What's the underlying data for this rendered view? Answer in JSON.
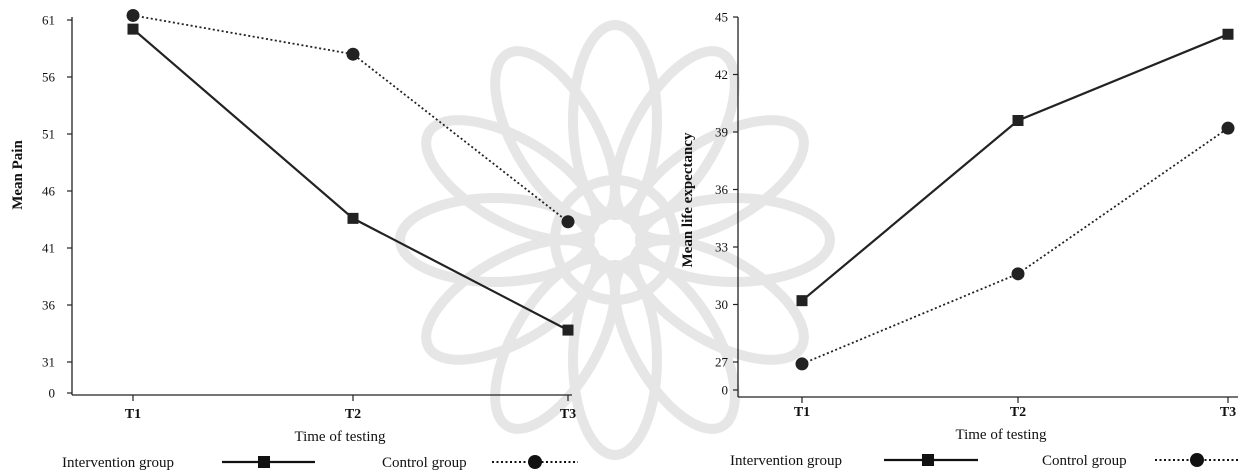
{
  "chart_data": [
    {
      "type": "line",
      "title": "",
      "xlabel": "Time of testing",
      "ylabel": "Mean Pain",
      "categories": [
        "T1",
        "T2",
        "T3"
      ],
      "y_ticks": [
        "0",
        "31",
        "36",
        "41",
        "46",
        "51",
        "56",
        "61"
      ],
      "ylim": [
        31,
        61
      ],
      "axis_break": true,
      "grid": false,
      "legend_position": "bottom",
      "series": [
        {
          "name": "Intervention group",
          "values": [
            60.2,
            43.6,
            33.8
          ],
          "marker": "square",
          "line_style": "solid",
          "color": "#222222"
        },
        {
          "name": "Control group",
          "values": [
            61.4,
            58.0,
            43.3
          ],
          "marker": "circle",
          "line_style": "dotted",
          "color": "#222222"
        }
      ]
    },
    {
      "type": "line",
      "title": "",
      "xlabel": "Time of testing",
      "ylabel": "Mean life expectancy",
      "categories": [
        "T1",
        "T2",
        "T3"
      ],
      "y_ticks": [
        "0",
        "27",
        "30",
        "33",
        "36",
        "39",
        "42",
        "45"
      ],
      "ylim": [
        27,
        45
      ],
      "axis_break": true,
      "grid": false,
      "legend_position": "bottom",
      "series": [
        {
          "name": "Intervention group",
          "values": [
            30.2,
            39.6,
            44.1
          ],
          "marker": "square",
          "line_style": "solid",
          "color": "#222222"
        },
        {
          "name": "Control group",
          "values": [
            26.9,
            31.6,
            39.2
          ],
          "marker": "circle",
          "line_style": "dotted",
          "color": "#222222"
        }
      ]
    }
  ]
}
